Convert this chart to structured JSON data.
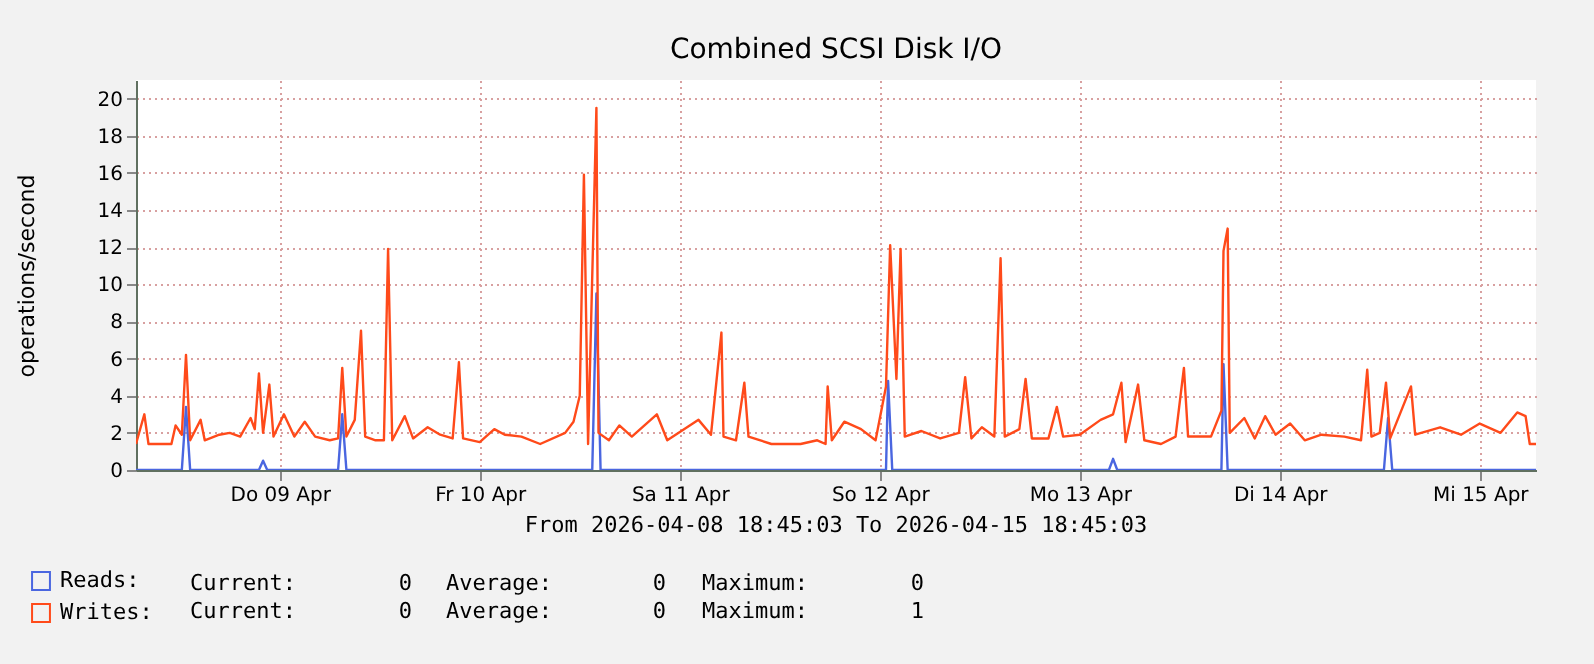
{
  "chart_data": {
    "type": "line",
    "title": "Combined SCSI Disk I/O",
    "ylabel": "operations/second",
    "xlim": [
      "2026-04-08T18:45",
      "2026-04-15T18:45"
    ],
    "ylim": [
      0,
      21
    ],
    "yticks": [
      0,
      2,
      4,
      6,
      8,
      10,
      12,
      14,
      16,
      18,
      20
    ],
    "xticks": [
      {
        "value": "2026-04-09T12:00",
        "label": "Do 09 Apr"
      },
      {
        "value": "2026-04-10T12:00",
        "label": "Fr 10 Apr"
      },
      {
        "value": "2026-04-11T12:00",
        "label": "Sa 11 Apr"
      },
      {
        "value": "2026-04-12T12:00",
        "label": "So 12 Apr"
      },
      {
        "value": "2026-04-13T12:00",
        "label": "Mo 13 Apr"
      },
      {
        "value": "2026-04-14T12:00",
        "label": "Di 14 Apr"
      },
      {
        "value": "2026-04-15T12:00",
        "label": "Mi 15 Apr"
      }
    ],
    "grid": true,
    "legend": "bottom left",
    "line_style": "solid",
    "marker": "none",
    "series": [
      {
        "name": "Reads:",
        "color": "#4a66e0",
        "x": [
          "2026-04-08T18:45",
          "2026-04-09T00:15",
          "2026-04-09T00:45",
          "2026-04-09T01:15",
          "2026-04-09T09:30",
          "2026-04-09T10:00",
          "2026-04-09T10:30",
          "2026-04-09T19:00",
          "2026-04-09T19:30",
          "2026-04-09T20:00",
          "2026-04-11T01:30",
          "2026-04-11T02:00",
          "2026-04-11T02:30",
          "2026-04-12T12:45",
          "2026-04-12T13:00",
          "2026-04-12T13:30",
          "2026-04-13T15:30",
          "2026-04-13T16:00",
          "2026-04-13T16:30",
          "2026-04-14T05:00",
          "2026-04-14T05:15",
          "2026-04-14T05:45",
          "2026-04-15T00:30",
          "2026-04-15T01:00",
          "2026-04-15T01:30",
          "2026-04-15T18:45"
        ],
        "values": [
          0,
          0,
          3.4,
          0,
          0,
          0.5,
          0,
          0,
          3.0,
          0,
          0,
          9.5,
          0,
          0,
          4.8,
          0,
          0,
          0.6,
          0,
          0,
          5.7,
          0,
          0,
          2.8,
          0,
          0
        ]
      },
      {
        "name": "Writes:",
        "color": "#ff4a1a",
        "x": [
          "2026-04-08T18:45",
          "2026-04-08T19:45",
          "2026-04-08T20:15",
          "2026-04-08T23:00",
          "2026-04-08T23:30",
          "2026-04-09T00:15",
          "2026-04-09T00:45",
          "2026-04-09T01:15",
          "2026-04-09T02:30",
          "2026-04-09T03:00",
          "2026-04-09T04:45",
          "2026-04-09T06:00",
          "2026-04-09T07:15",
          "2026-04-09T08:30",
          "2026-04-09T09:00",
          "2026-04-09T09:30",
          "2026-04-09T10:00",
          "2026-04-09T10:45",
          "2026-04-09T11:15",
          "2026-04-09T12:30",
          "2026-04-09T13:45",
          "2026-04-09T15:00",
          "2026-04-09T16:15",
          "2026-04-09T18:00",
          "2026-04-09T19:00",
          "2026-04-09T19:30",
          "2026-04-09T20:00",
          "2026-04-09T21:00",
          "2026-04-09T21:45",
          "2026-04-09T22:15",
          "2026-04-09T23:30",
          "2026-04-10T00:30",
          "2026-04-10T01:00",
          "2026-04-10T01:30",
          "2026-04-10T03:00",
          "2026-04-10T04:00",
          "2026-04-10T05:45",
          "2026-04-10T07:15",
          "2026-04-10T08:45",
          "2026-04-10T09:30",
          "2026-04-10T10:00",
          "2026-04-10T12:00",
          "2026-04-10T13:45",
          "2026-04-10T15:00",
          "2026-04-10T17:00",
          "2026-04-10T19:15",
          "2026-04-10T22:15",
          "2026-04-10T23:15",
          "2026-04-11T00:00",
          "2026-04-11T00:30",
          "2026-04-11T01:00",
          "2026-04-11T02:00",
          "2026-04-11T02:15",
          "2026-04-11T03:30",
          "2026-04-11T04:45",
          "2026-04-11T06:15",
          "2026-04-11T09:15",
          "2026-04-11T10:30",
          "2026-04-11T14:15",
          "2026-04-11T15:45",
          "2026-04-11T17:00",
          "2026-04-11T17:15",
          "2026-04-11T18:45",
          "2026-04-11T19:45",
          "2026-04-11T20:15",
          "2026-04-11T23:00",
          "2026-04-12T02:30",
          "2026-04-12T04:30",
          "2026-04-12T05:30",
          "2026-04-12T05:45",
          "2026-04-12T06:15",
          "2026-04-12T07:45",
          "2026-04-12T09:45",
          "2026-04-12T11:30",
          "2026-04-12T12:45",
          "2026-04-12T13:15",
          "2026-04-12T14:00",
          "2026-04-12T14:30",
          "2026-04-12T15:00",
          "2026-04-12T17:00",
          "2026-04-12T19:15",
          "2026-04-12T21:30",
          "2026-04-12T22:15",
          "2026-04-12T23:00",
          "2026-04-13T00:15",
          "2026-04-13T01:45",
          "2026-04-13T02:30",
          "2026-04-13T03:00",
          "2026-04-13T04:45",
          "2026-04-13T05:30",
          "2026-04-13T06:15",
          "2026-04-13T08:15",
          "2026-04-13T09:15",
          "2026-04-13T10:00",
          "2026-04-13T12:00",
          "2026-04-13T14:30",
          "2026-04-13T16:00",
          "2026-04-13T17:00",
          "2026-04-13T17:30",
          "2026-04-13T19:00",
          "2026-04-13T19:45",
          "2026-04-13T21:45",
          "2026-04-13T23:30",
          "2026-04-14T00:30",
          "2026-04-14T01:00",
          "2026-04-14T03:45",
          "2026-04-14T05:00",
          "2026-04-14T05:15",
          "2026-04-14T05:45",
          "2026-04-14T06:00",
          "2026-04-14T07:45",
          "2026-04-14T09:00",
          "2026-04-14T10:15",
          "2026-04-14T11:30",
          "2026-04-14T13:15",
          "2026-04-14T15:00",
          "2026-04-14T17:00",
          "2026-04-14T19:45",
          "2026-04-14T21:45",
          "2026-04-14T22:30",
          "2026-04-14T23:00",
          "2026-04-15T00:00",
          "2026-04-15T00:45",
          "2026-04-15T01:15",
          "2026-04-15T03:45",
          "2026-04-15T04:15",
          "2026-04-15T07:15",
          "2026-04-15T09:45",
          "2026-04-15T12:00",
          "2026-04-15T14:30",
          "2026-04-15T16:30",
          "2026-04-15T17:30",
          "2026-04-15T18:00",
          "2026-04-15T18:45"
        ],
        "values": [
          1.4,
          3.0,
          1.4,
          1.4,
          2.4,
          1.9,
          6.2,
          1.6,
          2.7,
          1.6,
          1.9,
          2.0,
          1.8,
          2.8,
          2.2,
          5.2,
          2.0,
          4.6,
          1.8,
          3.0,
          1.8,
          2.6,
          1.8,
          1.6,
          1.7,
          5.5,
          1.8,
          2.7,
          7.5,
          1.8,
          1.6,
          1.6,
          11.9,
          1.6,
          2.9,
          1.7,
          2.3,
          1.9,
          1.7,
          5.8,
          1.7,
          1.5,
          2.2,
          1.9,
          1.8,
          1.4,
          2.0,
          2.6,
          4.0,
          15.9,
          1.4,
          19.5,
          2.0,
          1.6,
          2.4,
          1.8,
          3.0,
          1.6,
          2.7,
          1.9,
          7.4,
          1.8,
          1.6,
          4.7,
          1.8,
          1.4,
          1.4,
          1.6,
          1.4,
          4.5,
          1.6,
          2.6,
          2.2,
          1.6,
          4.5,
          12.1,
          4.9,
          11.9,
          1.8,
          2.1,
          1.7,
          2.0,
          5.0,
          1.7,
          2.3,
          1.8,
          11.4,
          1.8,
          2.2,
          4.9,
          1.7,
          1.7,
          3.4,
          1.8,
          1.9,
          2.7,
          3.0,
          4.7,
          1.5,
          4.6,
          1.6,
          1.4,
          1.8,
          5.5,
          1.8,
          1.8,
          3.2,
          11.8,
          13.0,
          2.0,
          2.8,
          1.7,
          2.9,
          1.9,
          2.5,
          1.6,
          1.9,
          1.8,
          1.6,
          5.4,
          1.8,
          2.0,
          4.7,
          1.7,
          4.5,
          1.9,
          2.3,
          1.9,
          2.5,
          2.0,
          3.1,
          2.9,
          1.4,
          1.4
        ]
      }
    ],
    "annotations": [
      "From 2026-04-08 18:45:03 To 2026-04-15 18:45:03",
      "Current: 0 Average: 0 Maximum: 0",
      "Current: 0 Average: 0 Maximum: 1"
    ]
  }
}
